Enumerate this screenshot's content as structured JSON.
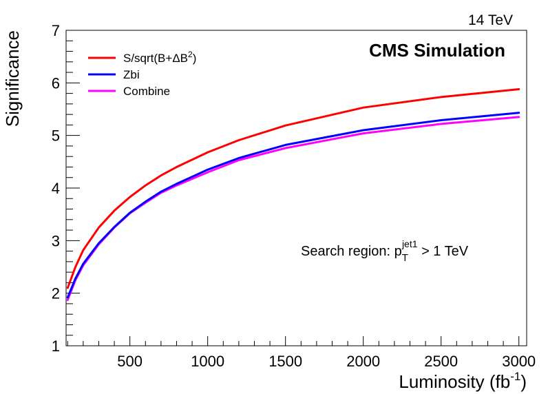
{
  "chart_data": {
    "type": "line",
    "energy_label": "14 TeV",
    "experiment_label": "CMS Simulation",
    "annotation": {
      "prefix": "Search region: p",
      "sub": "T",
      "sup": "jet1",
      "suffix": " > 1 TeV"
    },
    "xlabel": {
      "main": "Luminosity (fb",
      "sup": "-1",
      "close": ")"
    },
    "ylabel": "Significance",
    "xlim": [
      90,
      3050
    ],
    "ylim": [
      1,
      7
    ],
    "x_ticks": [
      500,
      1000,
      1500,
      2000,
      2500,
      3000
    ],
    "y_ticks": [
      1,
      2,
      3,
      4,
      5,
      6,
      7
    ],
    "legend_position": "top-left",
    "series": [
      {
        "name": "S/sqrt(B+ΔB²)",
        "legend": {
          "main": "S/sqrt(B+ΔB",
          "sup": "2",
          "close": ")"
        },
        "color": "#ff0000",
        "x": [
          100,
          150,
          200,
          300,
          400,
          500,
          600,
          700,
          800,
          1000,
          1200,
          1500,
          2000,
          2500,
          3000
        ],
        "y": [
          2.1,
          2.5,
          2.82,
          3.25,
          3.57,
          3.83,
          4.05,
          4.24,
          4.4,
          4.68,
          4.91,
          5.19,
          5.53,
          5.73,
          5.88
        ]
      },
      {
        "name": "Zbi",
        "legend": {
          "main": "Zbi",
          "sup": "",
          "close": ""
        },
        "color": "#0000ff",
        "x": [
          100,
          150,
          200,
          300,
          400,
          500,
          600,
          700,
          800,
          1000,
          1200,
          1500,
          2000,
          2500,
          3000
        ],
        "y": [
          1.92,
          2.28,
          2.56,
          2.95,
          3.26,
          3.53,
          3.74,
          3.93,
          4.08,
          4.35,
          4.57,
          4.82,
          5.1,
          5.29,
          5.43
        ]
      },
      {
        "name": "Combine",
        "legend": {
          "main": "Combine",
          "sup": "",
          "close": ""
        },
        "color": "#ff00ff",
        "x": [
          100,
          150,
          200,
          300,
          400,
          500,
          600,
          700,
          800,
          1000,
          1200,
          1500,
          2000,
          2500,
          3000
        ],
        "y": [
          1.87,
          2.25,
          2.53,
          2.93,
          3.25,
          3.52,
          3.72,
          3.91,
          4.05,
          4.3,
          4.53,
          4.76,
          5.04,
          5.22,
          5.35
        ]
      }
    ]
  }
}
